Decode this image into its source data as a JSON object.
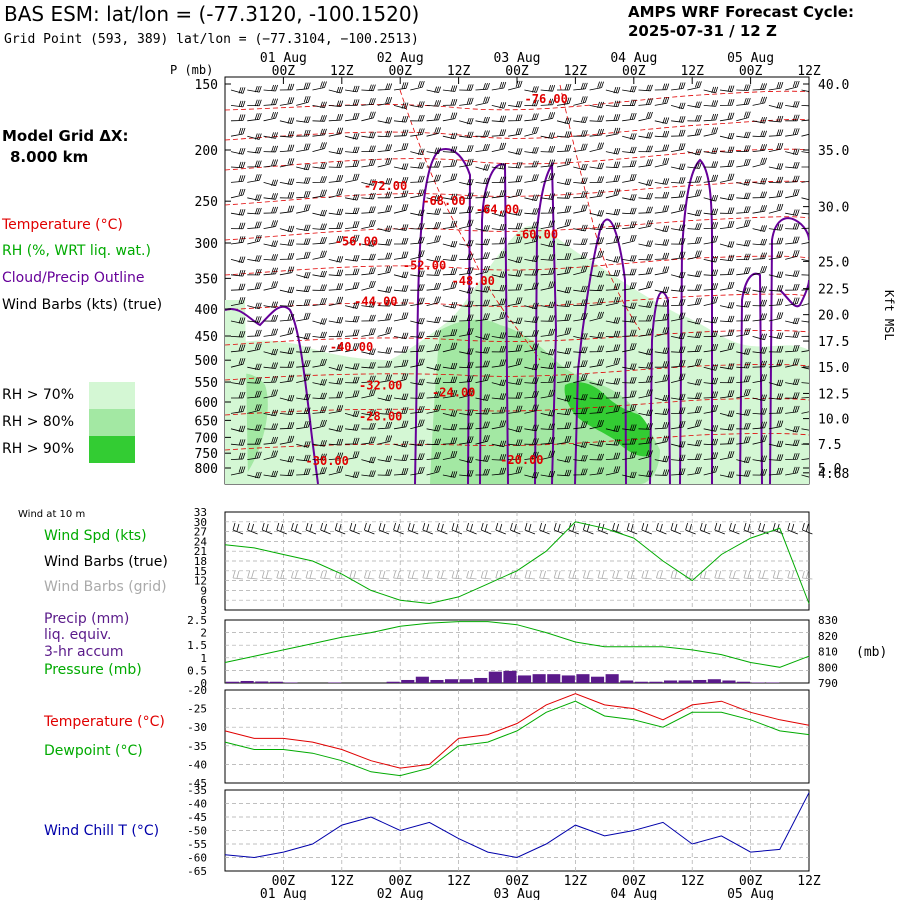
{
  "header": {
    "title": "BAS ESM:  lat/lon = (-77.3120, -100.1520)",
    "subtitle": "Grid Point (593, 389) lat/lon = (−77.3104, −100.2513)",
    "cycle_line1": "AMPS WRF Forecast Cycle:",
    "cycle_line2": "2025-07-31 / 12  Z"
  },
  "legend": {
    "model_grid_line1": "Model Grid ΔX:",
    "model_grid_line2": "8.000 km",
    "temperature": "Temperature (°C)",
    "rh": "RH (%, WRT liq. wat.)",
    "cloud": "Cloud/Precip Outline",
    "wind_barbs": "Wind Barbs (kts) (true)",
    "rh70": "RH > 70%",
    "rh80": "RH > 80%",
    "rh90": "RH > 90%",
    "wind_at_10m": "Wind at 10 m",
    "wind_spd": "Wind Spd (kts)",
    "wind_barbs_true": "Wind Barbs (true)",
    "wind_barbs_grid": "Wind Barbs (grid)",
    "precip_line1": "Precip (mm)",
    "precip_line2": "liq. equiv.",
    "precip_line3": "3-hr accum",
    "pressure": "Pressure (mb)",
    "temperature_sfc": "Temperature (°C)",
    "dewpoint": "Dewpoint (°C)",
    "wind_chill": "Wind Chill T (°C)"
  },
  "colors": {
    "temperature": "#e00000",
    "rh": "#00aa00",
    "cloud": "#660099",
    "wind": "#000000",
    "wind_grid": "#aaaaaa",
    "precip": "#5a1a8a",
    "wind_chill": "#0000aa",
    "rh70": "#d4f7d4",
    "rh80": "#a3e8a3",
    "rh90": "#33cc33"
  },
  "chart_data": [
    {
      "type": "heatmap",
      "name": "cross-section",
      "time_labels_top": [
        "00Z",
        "12Z",
        "00Z",
        "12Z",
        "00Z",
        "12Z",
        "00Z",
        "12Z",
        "00Z",
        "12Z"
      ],
      "time_labels_last": "12Z",
      "date_labels": [
        "01 Aug",
        "02 Aug",
        "03 Aug",
        "04 Aug",
        "05 Aug"
      ],
      "ylabel_left": "P (mb)",
      "pressure_ticks": [
        150,
        200,
        250,
        300,
        350,
        400,
        450,
        500,
        550,
        600,
        650,
        700,
        750,
        800
      ],
      "height_ticks": [
        {
          "label": "40.0",
          "p": 150
        },
        {
          "label": "35.0",
          "p": 200
        },
        {
          "label": "30.0",
          "p": 256
        },
        {
          "label": "25.0",
          "p": 325
        },
        {
          "label": "22.5",
          "p": 366
        },
        {
          "label": "20.0",
          "p": 410
        },
        {
          "label": "17.5",
          "p": 460
        },
        {
          "label": "15.0",
          "p": 515
        },
        {
          "label": "12.5",
          "p": 578
        },
        {
          "label": "10.0",
          "p": 645
        },
        {
          "label": "7.5",
          "p": 720
        },
        {
          "label": "5.0",
          "p": 800
        },
        {
          "label": "4.68",
          "p": 817
        }
      ],
      "ylabel_right": "Kft MSL",
      "temperature_labels": [
        {
          "text": "-76.00",
          "t": 66,
          "p": 163
        },
        {
          "text": "-72.00",
          "t": 33,
          "p": 238
        },
        {
          "text": "-68.00",
          "t": 45,
          "p": 254
        },
        {
          "text": "-64.00",
          "t": 56,
          "p": 264
        },
        {
          "text": "-60.00",
          "t": 64,
          "p": 294
        },
        {
          "text": "-56.00",
          "t": 27,
          "p": 303
        },
        {
          "text": "-52.00",
          "t": 41,
          "p": 337
        },
        {
          "text": "-48.00",
          "t": 51,
          "p": 360
        },
        {
          "text": "-44.00",
          "t": 31,
          "p": 394
        },
        {
          "text": "-40.00",
          "t": 26,
          "p": 480
        },
        {
          "text": "-32.00",
          "t": 32,
          "p": 568
        },
        {
          "text": "-24.00",
          "t": 47,
          "p": 586
        },
        {
          "text": "-28.00",
          "t": 32,
          "p": 650
        },
        {
          "text": "-30.00",
          "t": 21,
          "p": 789
        },
        {
          "text": "-20.00",
          "t": 61,
          "p": 787
        }
      ]
    },
    {
      "type": "line",
      "name": "wind-speed",
      "ylim": [
        3,
        33
      ],
      "yticks": [
        3,
        6,
        9,
        12,
        15,
        18,
        21,
        24,
        27,
        30,
        33
      ],
      "x_hours": [
        0,
        6,
        12,
        18,
        24,
        30,
        36,
        42,
        48,
        54,
        60,
        66,
        72,
        78,
        84,
        90,
        96,
        102,
        108,
        114,
        120
      ],
      "series": [
        {
          "values": [
            23,
            22,
            20,
            18,
            14,
            9,
            6,
            5,
            7,
            11,
            15,
            21,
            30,
            28,
            25,
            18,
            12,
            20,
            25,
            28,
            5
          ]
        }
      ]
    },
    {
      "type": "bar",
      "name": "precip-pressure",
      "ylim_left": [
        0,
        2.5
      ],
      "yticks_left": [
        "2.5",
        "2",
        "1.5",
        "1",
        "0.5",
        "0"
      ],
      "ylim_right": [
        790,
        830
      ],
      "yticks_right": [
        830,
        820,
        810,
        800,
        790
      ],
      "ylabel_right": "(mb)",
      "precip_3hr": [
        0.05,
        0.08,
        0.06,
        0.05,
        0.02,
        0.0,
        0.0,
        0.02,
        0.0,
        0.0,
        0.0,
        0.05,
        0.12,
        0.25,
        0.12,
        0.15,
        0.15,
        0.2,
        0.45,
        0.48,
        0.3,
        0.35,
        0.35,
        0.3,
        0.35,
        0.25,
        0.35,
        0.1,
        0.05,
        0.05,
        0.1,
        0.1,
        0.12,
        0.15,
        0.1,
        0.05,
        0.02,
        0.02,
        0.0,
        0.0
      ],
      "pressure": [
        803,
        807,
        811,
        815,
        819,
        822,
        826,
        828,
        829,
        829,
        827,
        822,
        816,
        813,
        813,
        813,
        811,
        808,
        803,
        800,
        807
      ]
    },
    {
      "type": "line",
      "name": "temperature-dewpoint",
      "ylim": [
        -45,
        -20
      ],
      "yticks": [
        -20,
        -25,
        -30,
        -35,
        -40,
        -45
      ],
      "series": [
        {
          "name": "Temperature (°C)",
          "values": [
            -31,
            -33,
            -33,
            -34,
            -36,
            -39,
            -41,
            -40,
            -33,
            -32,
            -29,
            -24,
            -21,
            -24,
            -25,
            -28,
            -24,
            -23,
            -26,
            -28,
            -29.5
          ]
        },
        {
          "name": "Dewpoint (°C)",
          "values": [
            -34,
            -36,
            -36,
            -37,
            -39,
            -42,
            -43,
            -41,
            -35,
            -34,
            -31,
            -26,
            -23,
            -27,
            -28,
            -30,
            -26,
            -26,
            -28,
            -31,
            -32
          ]
        }
      ]
    },
    {
      "type": "line",
      "name": "wind-chill",
      "ylim": [
        -65,
        -35
      ],
      "yticks": [
        -35,
        -40,
        -45,
        -50,
        -55,
        -60,
        -65
      ],
      "series": [
        {
          "name": "Wind Chill T (°C)",
          "values": [
            -59,
            -60,
            -58,
            -55,
            -48,
            -45,
            -50,
            -47,
            -53,
            -58,
            -60,
            -55,
            -48,
            -52,
            -50,
            -47,
            -55,
            -52,
            -58,
            -57,
            -36
          ]
        }
      ]
    }
  ]
}
